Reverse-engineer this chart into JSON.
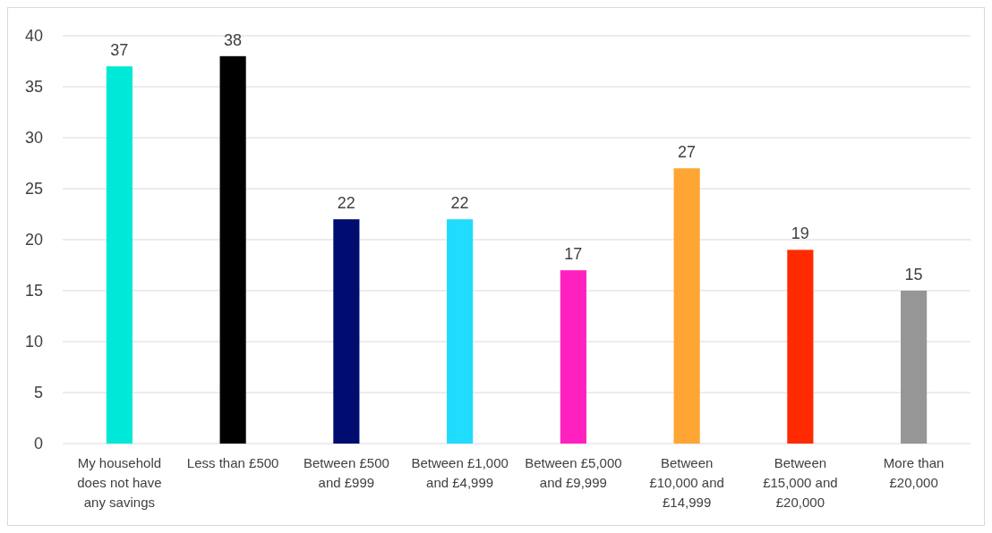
{
  "chart_data": {
    "type": "bar",
    "categories": [
      "My household does not have any savings",
      "Less than £500",
      "Between £500 and £999",
      "Between £1,000 and £4,999",
      "Between £5,000 and £9,999",
      "Between £10,000 and £14,999",
      "Between £15,000 and £20,000",
      "More than £20,000"
    ],
    "values": [
      37,
      38,
      22,
      22,
      17,
      27,
      19,
      15
    ],
    "colors": [
      "#00e8d8",
      "#000000",
      "#000c70",
      "#20dcff",
      "#ff20c0",
      "#ffa533",
      "#ff2a00",
      "#969696"
    ],
    "ylim": [
      0,
      40
    ],
    "yticks": [
      0,
      5,
      10,
      15,
      20,
      25,
      30,
      35,
      40
    ],
    "grid": "y",
    "data_labels": true
  }
}
